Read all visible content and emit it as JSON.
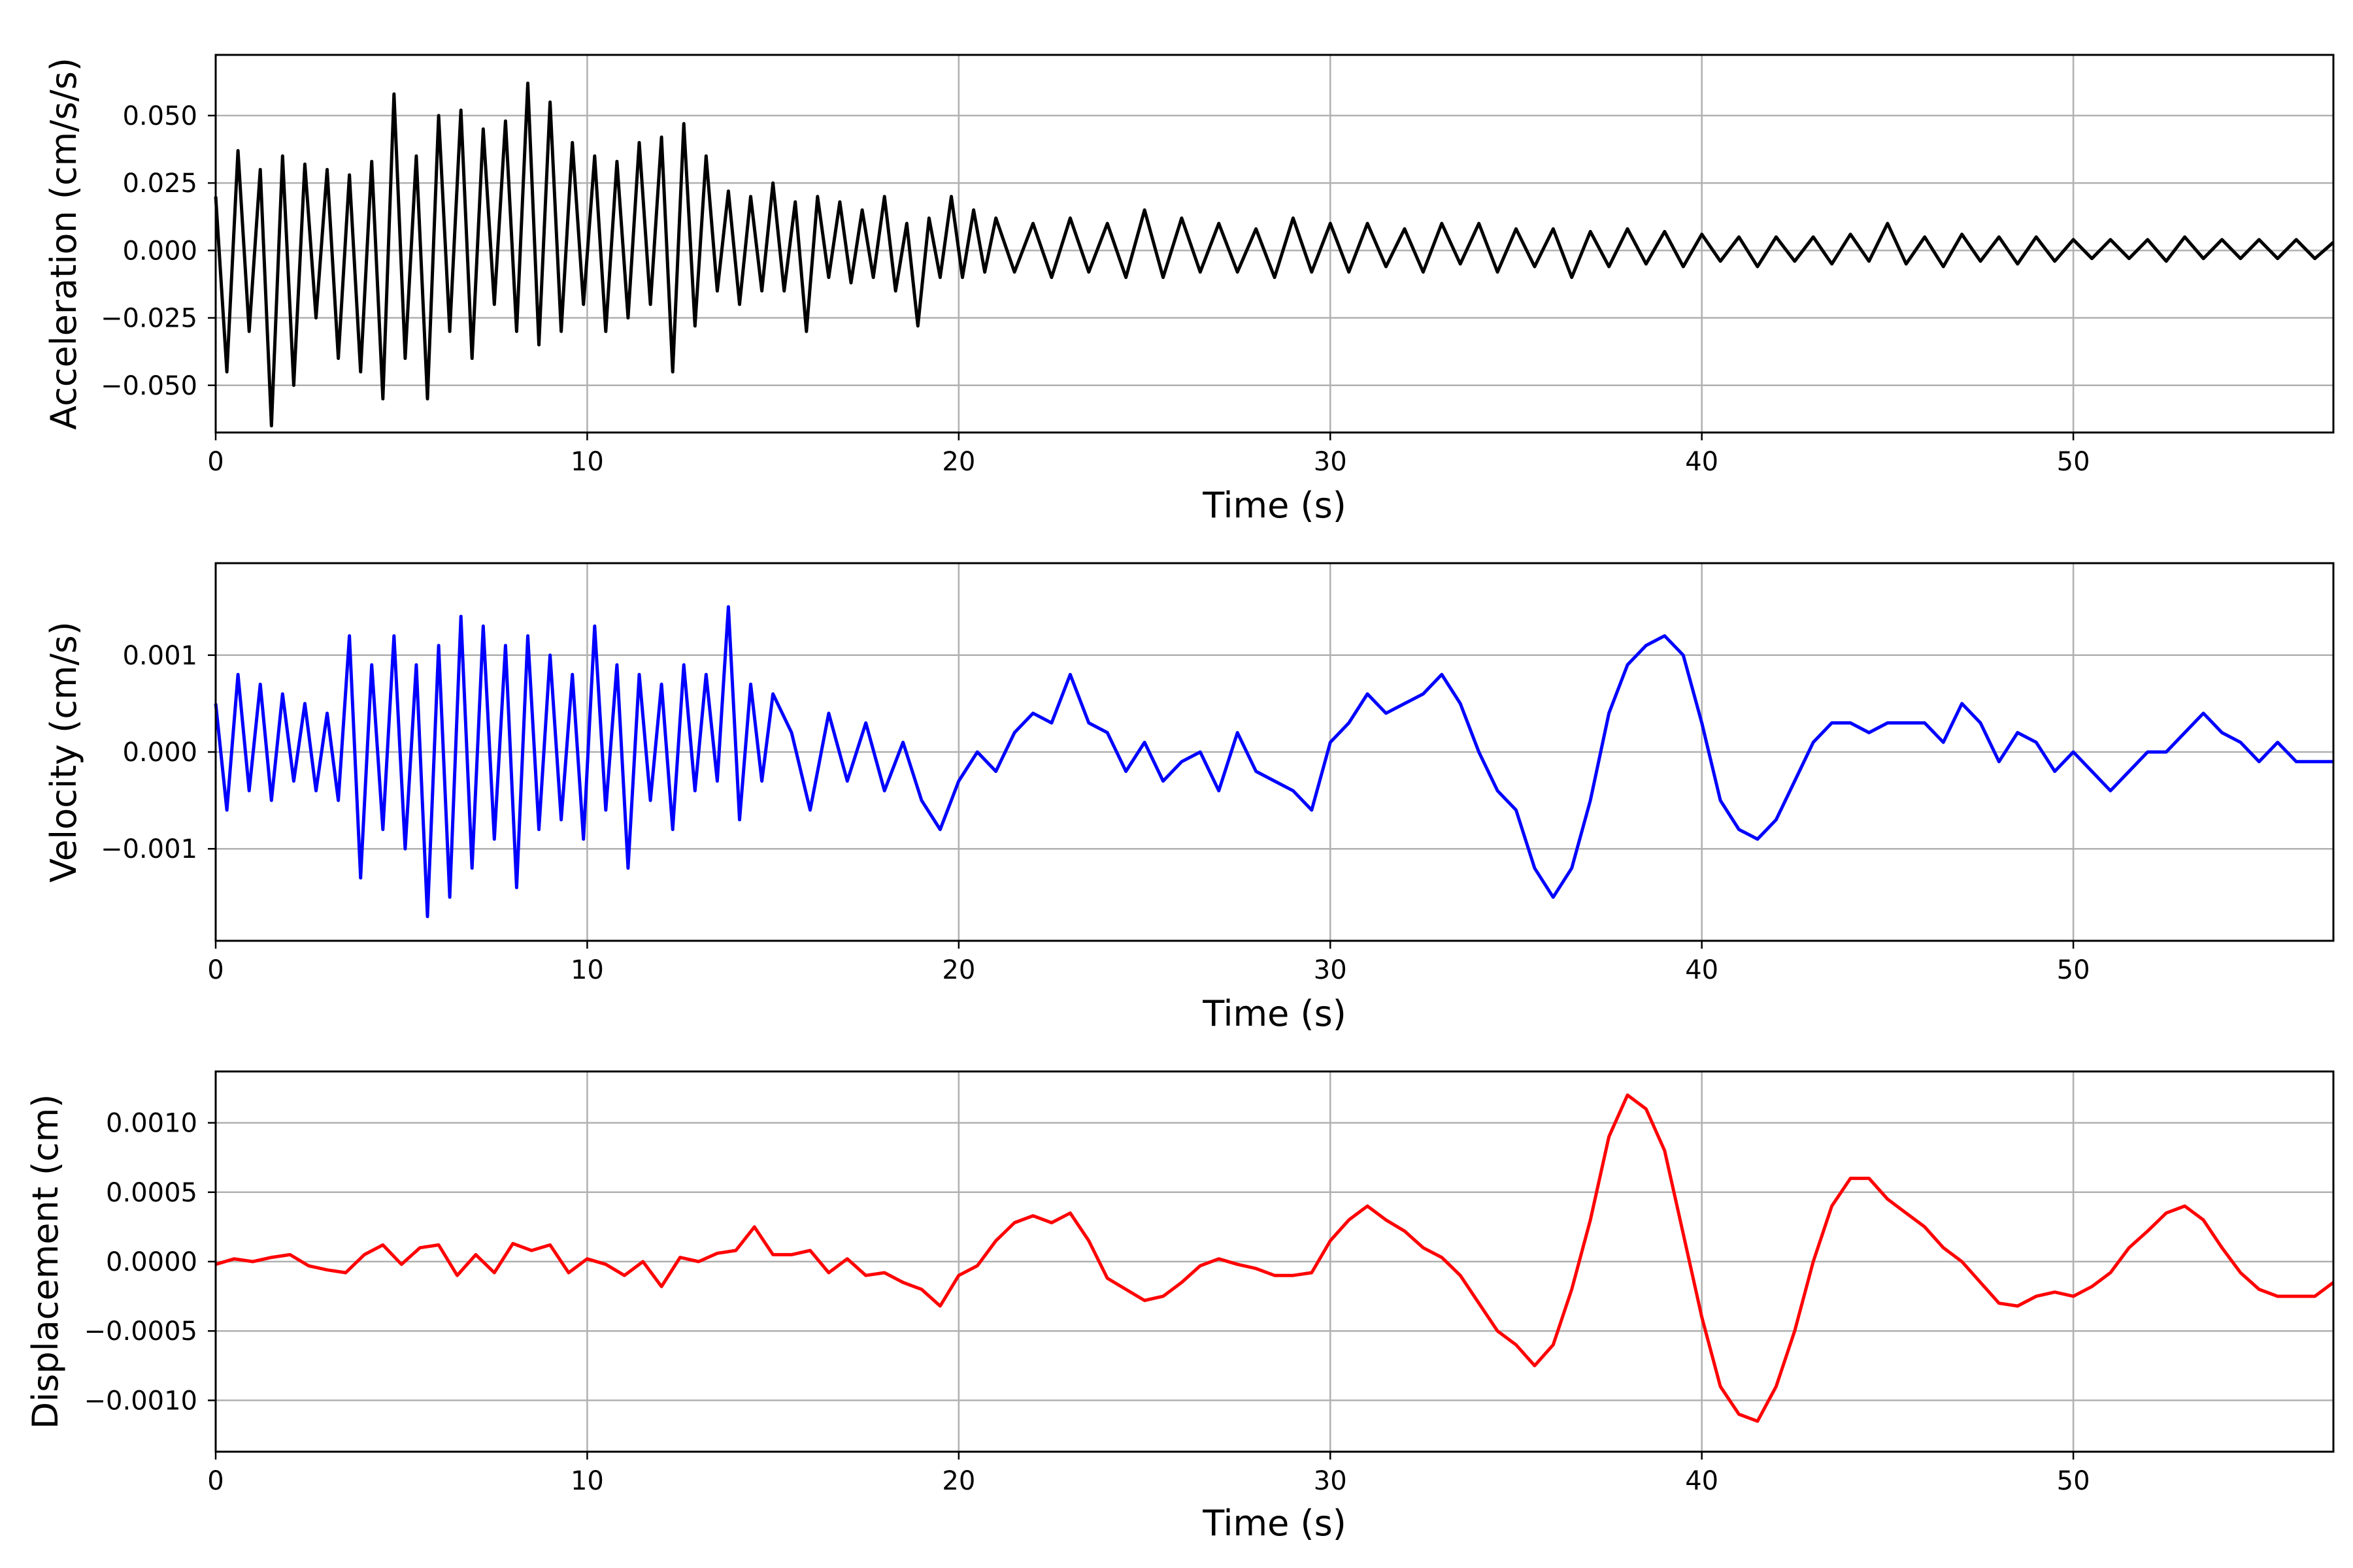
{
  "chart_data": [
    {
      "type": "line",
      "title": "",
      "xlabel": "Time (s)",
      "ylabel": "Acceleration (cm/s/s)",
      "xlim": [
        0,
        57
      ],
      "ylim": [
        -0.0675,
        0.0725
      ],
      "xticks": [
        0,
        10,
        20,
        30,
        40,
        50
      ],
      "xtick_labels": [
        "0",
        "10",
        "20",
        "30",
        "40",
        "50"
      ],
      "yticks": [
        -0.05,
        -0.025,
        0.0,
        0.025,
        0.05
      ],
      "ytick_labels": [
        "−0.050",
        "−0.025",
        "0.000",
        "0.025",
        "0.050"
      ],
      "grid": true,
      "color": "#000000",
      "series": [
        {
          "x": [
            0,
            0.3,
            0.6,
            0.9,
            1.2,
            1.5,
            1.8,
            2.1,
            2.4,
            2.7,
            3.0,
            3.3,
            3.6,
            3.9,
            4.2,
            4.5,
            4.8,
            5.1,
            5.4,
            5.7,
            6.0,
            6.3,
            6.6,
            6.9,
            7.2,
            7.5,
            7.8,
            8.1,
            8.4,
            8.7,
            9.0,
            9.3,
            9.6,
            9.9,
            10.2,
            10.5,
            10.8,
            11.1,
            11.4,
            11.7,
            12.0,
            12.3,
            12.6,
            12.9,
            13.2,
            13.5,
            13.8,
            14.1,
            14.4,
            14.7,
            15.0,
            15.3,
            15.6,
            15.9,
            16.2,
            16.5,
            16.8,
            17.1,
            17.4,
            17.7,
            18.0,
            18.3,
            18.6,
            18.9,
            19.2,
            19.5,
            19.8,
            20.1,
            20.4,
            20.7,
            21.0,
            21.5,
            22.0,
            22.5,
            23.0,
            23.5,
            24.0,
            24.5,
            25.0,
            25.5,
            26.0,
            26.5,
            27.0,
            27.5,
            28.0,
            28.5,
            29.0,
            29.5,
            30.0,
            30.5,
            31.0,
            31.5,
            32.0,
            32.5,
            33.0,
            33.5,
            34.0,
            34.5,
            35.0,
            35.5,
            36.0,
            36.5,
            37.0,
            37.5,
            38.0,
            38.5,
            39.0,
            39.5,
            40.0,
            40.5,
            41.0,
            41.5,
            42.0,
            42.5,
            43.0,
            43.5,
            44.0,
            44.5,
            45.0,
            45.5,
            46.0,
            46.5,
            47.0,
            47.5,
            48.0,
            48.5,
            49.0,
            49.5,
            50.0,
            50.5,
            51.0,
            51.5,
            52.0,
            52.5,
            53.0,
            53.5,
            54.0,
            54.5,
            55.0,
            55.5,
            56.0,
            56.5,
            57.0
          ],
          "y": [
            0.02,
            -0.045,
            0.037,
            -0.03,
            0.03,
            -0.065,
            0.035,
            -0.05,
            0.032,
            -0.025,
            0.03,
            -0.04,
            0.028,
            -0.045,
            0.033,
            -0.055,
            0.058,
            -0.04,
            0.035,
            -0.055,
            0.05,
            -0.03,
            0.052,
            -0.04,
            0.045,
            -0.02,
            0.048,
            -0.03,
            0.062,
            -0.035,
            0.055,
            -0.03,
            0.04,
            -0.02,
            0.035,
            -0.03,
            0.033,
            -0.025,
            0.04,
            -0.02,
            0.042,
            -0.045,
            0.047,
            -0.028,
            0.035,
            -0.015,
            0.022,
            -0.02,
            0.02,
            -0.015,
            0.025,
            -0.015,
            0.018,
            -0.03,
            0.02,
            -0.01,
            0.018,
            -0.012,
            0.015,
            -0.01,
            0.02,
            -0.015,
            0.01,
            -0.028,
            0.012,
            -0.01,
            0.02,
            -0.01,
            0.015,
            -0.008,
            0.012,
            -0.008,
            0.01,
            -0.01,
            0.012,
            -0.008,
            0.01,
            -0.01,
            0.015,
            -0.01,
            0.012,
            -0.008,
            0.01,
            -0.008,
            0.008,
            -0.01,
            0.012,
            -0.008,
            0.01,
            -0.008,
            0.01,
            -0.006,
            0.008,
            -0.008,
            0.01,
            -0.005,
            0.01,
            -0.008,
            0.008,
            -0.006,
            0.008,
            -0.01,
            0.007,
            -0.006,
            0.008,
            -0.005,
            0.007,
            -0.006,
            0.006,
            -0.004,
            0.005,
            -0.006,
            0.005,
            -0.004,
            0.005,
            -0.005,
            0.006,
            -0.004,
            0.01,
            -0.005,
            0.005,
            -0.006,
            0.006,
            -0.004,
            0.005,
            -0.005,
            0.005,
            -0.004,
            0.004,
            -0.003,
            0.004,
            -0.003,
            0.004,
            -0.004,
            0.005,
            -0.003,
            0.004,
            -0.003,
            0.004,
            -0.003,
            0.004,
            -0.003,
            0.003
          ]
        }
      ]
    },
    {
      "type": "line",
      "title": "",
      "xlabel": "Time (s)",
      "ylabel": "Velocity (cm/s)",
      "xlim": [
        0,
        57
      ],
      "ylim": [
        -0.00195,
        0.00195
      ],
      "xticks": [
        0,
        10,
        20,
        30,
        40,
        50
      ],
      "xtick_labels": [
        "0",
        "10",
        "20",
        "30",
        "40",
        "50"
      ],
      "yticks": [
        -0.001,
        0.0,
        0.001
      ],
      "ytick_labels": [
        "−0.001",
        "0.000",
        "0.001"
      ],
      "grid": true,
      "color": "#0000ff",
      "series": [
        {
          "x": [
            0,
            0.3,
            0.6,
            0.9,
            1.2,
            1.5,
            1.8,
            2.1,
            2.4,
            2.7,
            3.0,
            3.3,
            3.6,
            3.9,
            4.2,
            4.5,
            4.8,
            5.1,
            5.4,
            5.7,
            6.0,
            6.3,
            6.6,
            6.9,
            7.2,
            7.5,
            7.8,
            8.1,
            8.4,
            8.7,
            9.0,
            9.3,
            9.6,
            9.9,
            10.2,
            10.5,
            10.8,
            11.1,
            11.4,
            11.7,
            12.0,
            12.3,
            12.6,
            12.9,
            13.2,
            13.5,
            13.8,
            14.1,
            14.4,
            14.7,
            15.0,
            15.5,
            16.0,
            16.5,
            17.0,
            17.5,
            18.0,
            18.5,
            19.0,
            19.5,
            20.0,
            20.5,
            21.0,
            21.5,
            22.0,
            22.5,
            23.0,
            23.5,
            24.0,
            24.5,
            25.0,
            25.5,
            26.0,
            26.5,
            27.0,
            27.5,
            28.0,
            28.5,
            29.0,
            29.5,
            30.0,
            30.5,
            31.0,
            31.5,
            32.0,
            32.5,
            33.0,
            33.5,
            34.0,
            34.5,
            35.0,
            35.5,
            36.0,
            36.5,
            37.0,
            37.5,
            38.0,
            38.5,
            39.0,
            39.5,
            40.0,
            40.5,
            41.0,
            41.5,
            42.0,
            42.5,
            43.0,
            43.5,
            44.0,
            44.5,
            45.0,
            45.5,
            46.0,
            46.5,
            47.0,
            47.5,
            48.0,
            48.5,
            49.0,
            49.5,
            50.0,
            50.5,
            51.0,
            51.5,
            52.0,
            52.5,
            53.0,
            53.5,
            54.0,
            54.5,
            55.0,
            55.5,
            56.0,
            56.5,
            57.0
          ],
          "y": [
            0.0005,
            -0.0006,
            0.0008,
            -0.0004,
            0.0007,
            -0.0005,
            0.0006,
            -0.0003,
            0.0005,
            -0.0004,
            0.0004,
            -0.0005,
            0.0012,
            -0.0013,
            0.0009,
            -0.0008,
            0.0012,
            -0.001,
            0.0009,
            -0.0017,
            0.0011,
            -0.0015,
            0.0014,
            -0.0012,
            0.0013,
            -0.0009,
            0.0011,
            -0.0014,
            0.0012,
            -0.0008,
            0.001,
            -0.0007,
            0.0008,
            -0.0009,
            0.0013,
            -0.0006,
            0.0009,
            -0.0012,
            0.0008,
            -0.0005,
            0.0007,
            -0.0008,
            0.0009,
            -0.0004,
            0.0008,
            -0.0003,
            0.0015,
            -0.0007,
            0.0007,
            -0.0003,
            0.0006,
            0.0002,
            -0.0006,
            0.0004,
            -0.0003,
            0.0003,
            -0.0004,
            0.0001,
            -0.0005,
            -0.0008,
            -0.0003,
            0.0,
            -0.0002,
            0.0002,
            0.0004,
            0.0003,
            0.0008,
            0.0003,
            0.0002,
            -0.0002,
            0.0001,
            -0.0003,
            -0.0001,
            0.0,
            -0.0004,
            0.0002,
            -0.0002,
            -0.0003,
            -0.0004,
            -0.0006,
            0.0001,
            0.0003,
            0.0006,
            0.0004,
            0.0005,
            0.0006,
            0.0008,
            0.0005,
            0.0,
            -0.0004,
            -0.0006,
            -0.0012,
            -0.0015,
            -0.0012,
            -0.0005,
            0.0004,
            0.0009,
            0.0011,
            0.0012,
            0.001,
            0.0003,
            -0.0005,
            -0.0008,
            -0.0009,
            -0.0007,
            -0.0003,
            0.0001,
            0.0003,
            0.0003,
            0.0002,
            0.0003,
            0.0003,
            0.0003,
            0.0001,
            0.0005,
            0.0003,
            -0.0001,
            0.0002,
            0.0001,
            -0.0002,
            0.0,
            -0.0002,
            -0.0004,
            -0.0002,
            0.0,
            0.0,
            0.0002,
            0.0004,
            0.0002,
            0.0001,
            -0.0001,
            0.0001,
            -0.0001,
            -0.0001,
            -0.0001
          ]
        }
      ]
    },
    {
      "type": "line",
      "title": "",
      "xlabel": "Time (s)",
      "ylabel": "Displacement (cm)",
      "xlim": [
        0,
        57
      ],
      "ylim": [
        -0.00137,
        0.00137
      ],
      "xticks": [
        0,
        10,
        20,
        30,
        40,
        50
      ],
      "xtick_labels": [
        "0",
        "10",
        "20",
        "30",
        "40",
        "50"
      ],
      "yticks": [
        -0.001,
        -0.0005,
        0.0,
        0.0005,
        0.001
      ],
      "ytick_labels": [
        "−0.0010",
        "−0.0005",
        "0.0000",
        "0.0005",
        "0.0010"
      ],
      "grid": true,
      "color": "#ff0000",
      "series": [
        {
          "x": [
            0,
            0.5,
            1.0,
            1.5,
            2.0,
            2.5,
            3.0,
            3.5,
            4.0,
            4.5,
            5.0,
            5.5,
            6.0,
            6.5,
            7.0,
            7.5,
            8.0,
            8.5,
            9.0,
            9.5,
            10.0,
            10.5,
            11.0,
            11.5,
            12.0,
            12.5,
            13.0,
            13.5,
            14.0,
            14.5,
            15.0,
            15.5,
            16.0,
            16.5,
            17.0,
            17.5,
            18.0,
            18.5,
            19.0,
            19.5,
            20.0,
            20.5,
            21.0,
            21.5,
            22.0,
            22.5,
            23.0,
            23.5,
            24.0,
            24.5,
            25.0,
            25.5,
            26.0,
            26.5,
            27.0,
            27.5,
            28.0,
            28.5,
            29.0,
            29.5,
            30.0,
            30.5,
            31.0,
            31.5,
            32.0,
            32.5,
            33.0,
            33.5,
            34.0,
            34.5,
            35.0,
            35.5,
            36.0,
            36.5,
            37.0,
            37.5,
            38.0,
            38.5,
            39.0,
            39.5,
            40.0,
            40.5,
            41.0,
            41.5,
            42.0,
            42.5,
            43.0,
            43.5,
            44.0,
            44.5,
            45.0,
            45.5,
            46.0,
            46.5,
            47.0,
            47.5,
            48.0,
            48.5,
            49.0,
            49.5,
            50.0,
            50.5,
            51.0,
            51.5,
            52.0,
            52.5,
            53.0,
            53.5,
            54.0,
            54.5,
            55.0,
            55.5,
            56.0,
            56.5,
            57.0
          ],
          "y": [
            -2e-05,
            2e-05,
            0.0,
            3e-05,
            5e-05,
            -3e-05,
            -6e-05,
            -8e-05,
            5e-05,
            0.00012,
            -2e-05,
            0.0001,
            0.00012,
            -0.0001,
            5e-05,
            -8e-05,
            0.00013,
            8e-05,
            0.00012,
            -8e-05,
            2e-05,
            -2e-05,
            -0.0001,
            0.0,
            -0.00018,
            3e-05,
            0.0,
            6e-05,
            8e-05,
            0.00025,
            5e-05,
            5e-05,
            8e-05,
            -8e-05,
            2e-05,
            -0.0001,
            -8e-05,
            -0.00015,
            -0.0002,
            -0.00032,
            -0.0001,
            -3e-05,
            0.00015,
            0.00028,
            0.00033,
            0.00028,
            0.00035,
            0.00015,
            -0.00012,
            -0.0002,
            -0.00028,
            -0.00025,
            -0.00015,
            -3e-05,
            2e-05,
            -2e-05,
            -5e-05,
            -0.0001,
            -0.0001,
            -8e-05,
            0.00015,
            0.0003,
            0.0004,
            0.0003,
            0.00022,
            0.0001,
            3e-05,
            -0.0001,
            -0.0003,
            -0.0005,
            -0.0006,
            -0.00075,
            -0.0006,
            -0.0002,
            0.0003,
            0.0009,
            0.0012,
            0.0011,
            0.0008,
            0.0002,
            -0.0004,
            -0.0009,
            -0.0011,
            -0.00115,
            -0.0009,
            -0.0005,
            0.0,
            0.0004,
            0.0006,
            0.0006,
            0.00045,
            0.00035,
            0.00025,
            0.0001,
            0.0,
            -0.00015,
            -0.0003,
            -0.00032,
            -0.00025,
            -0.00022,
            -0.00025,
            -0.00018,
            -8e-05,
            0.0001,
            0.00022,
            0.00035,
            0.0004,
            0.0003,
            0.0001,
            -8e-05,
            -0.0002,
            -0.00025,
            -0.00025,
            -0.00025,
            -0.00015
          ]
        }
      ]
    }
  ]
}
